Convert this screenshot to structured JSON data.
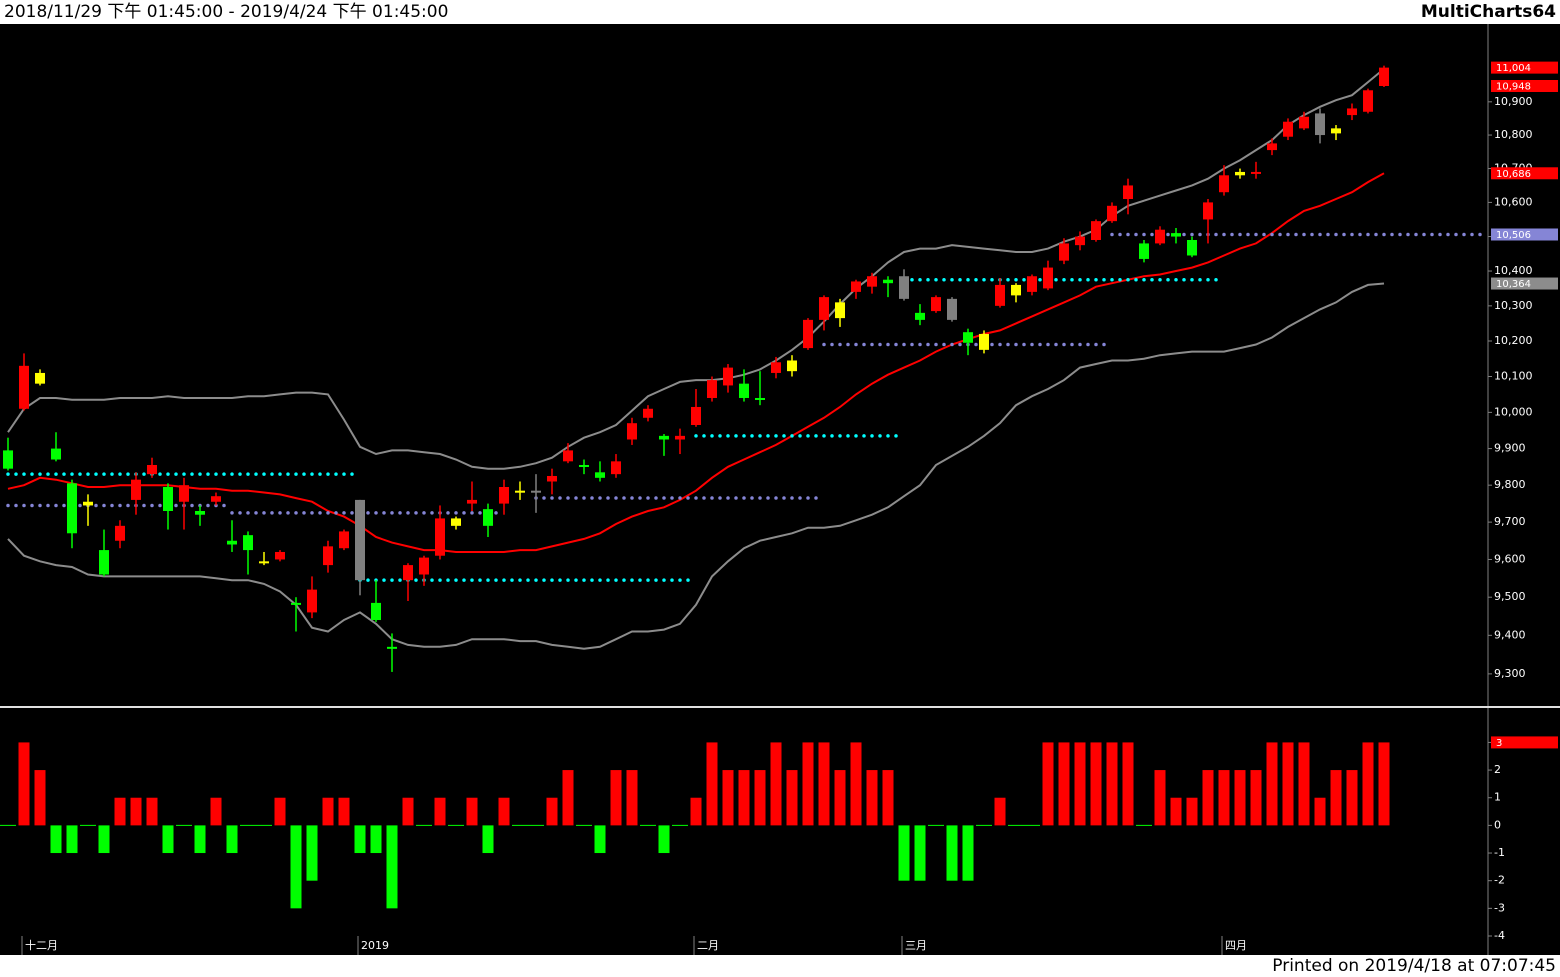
{
  "chart_data": {
    "type": "candlestick",
    "title": "2018/11/29 下午 01:45:00 - 2019/4/24 下午 01:45:00",
    "brand": "MultiCharts64",
    "footer": "Printed on 2019/4/18 at 07:07:45",
    "categories": [
      null,
      "十二月",
      null,
      null,
      null,
      null,
      null,
      null,
      null,
      null,
      null,
      null,
      null,
      null,
      null,
      null,
      null,
      null,
      null,
      null,
      null,
      null,
      "2019",
      null,
      null,
      null,
      null,
      null,
      null,
      null,
      null,
      null,
      null,
      null,
      null,
      null,
      null,
      null,
      null,
      null,
      null,
      null,
      null,
      "二月",
      null,
      null,
      null,
      null,
      null,
      null,
      null,
      null,
      null,
      null,
      null,
      null,
      "三月",
      null,
      null,
      null,
      null,
      null,
      null,
      null,
      null,
      null,
      null,
      null,
      null,
      null,
      null,
      null,
      null,
      null,
      null,
      null,
      "四月",
      null,
      null,
      null,
      null,
      null,
      null,
      null,
      null,
      null,
      null
    ],
    "open": [
      9895,
      10010,
      10080,
      9900,
      9805,
      9745,
      9625,
      9650,
      9760,
      9830,
      9795,
      9755,
      9730,
      9755,
      9650,
      9665,
      9590,
      9600,
      9485,
      9460,
      9585,
      9630,
      9760,
      9485,
      9370,
      9545,
      9560,
      9610,
      9690,
      9750,
      9735,
      9750,
      9780,
      9785,
      9810,
      9865,
      9855,
      9835,
      9830,
      9925,
      9985,
      9935,
      9925,
      9965,
      10040,
      10075,
      10080,
      10040,
      10110,
      10115,
      10180,
      10260,
      10265,
      10340,
      10355,
      10375,
      10385,
      10280,
      10285,
      10320,
      10225,
      10175,
      10300,
      10330,
      10340,
      10350,
      10430,
      10475,
      10490,
      10545,
      10610,
      10480,
      10480,
      10510,
      10490,
      10550,
      10630,
      10680,
      10685,
      10755,
      10795,
      10820,
      10865,
      10805,
      10860,
      10870,
      10948
    ],
    "high": [
      9930,
      10165,
      10120,
      9945,
      9815,
      9775,
      9680,
      9705,
      9835,
      9875,
      9805,
      9820,
      9745,
      9780,
      9705,
      9675,
      9620,
      9625,
      9500,
      9555,
      9650,
      9680,
      9760,
      9545,
      9405,
      9590,
      9610,
      9745,
      9715,
      9810,
      9750,
      9815,
      9810,
      9830,
      9845,
      9915,
      9870,
      9865,
      9885,
      9985,
      10020,
      9940,
      9955,
      10065,
      10100,
      10135,
      10120,
      10115,
      10155,
      10160,
      10265,
      10330,
      10320,
      10375,
      10395,
      10385,
      10405,
      10305,
      10330,
      10325,
      10235,
      10230,
      10380,
      10365,
      10390,
      10430,
      10495,
      10515,
      10550,
      10600,
      10670,
      10490,
      10530,
      10525,
      10500,
      10610,
      10710,
      10700,
      10720,
      10790,
      10850,
      10870,
      10880,
      10830,
      10895,
      10940,
      11010
    ],
    "low": [
      9840,
      10005,
      10075,
      9865,
      9630,
      9690,
      9555,
      9630,
      9720,
      9820,
      9680,
      9680,
      9690,
      9745,
      9620,
      9560,
      9585,
      9595,
      9410,
      9445,
      9565,
      9625,
      9505,
      9435,
      9305,
      9490,
      9530,
      9600,
      9680,
      9730,
      9660,
      9720,
      9760,
      9725,
      9775,
      9860,
      9830,
      9810,
      9820,
      9910,
      9975,
      9880,
      9885,
      9960,
      10030,
      10055,
      10030,
      10020,
      10095,
      10100,
      10175,
      10230,
      10240,
      10320,
      10335,
      10325,
      10315,
      10245,
      10280,
      10255,
      10160,
      10165,
      10295,
      10310,
      10330,
      10345,
      10420,
      10460,
      10485,
      10540,
      10565,
      10425,
      10475,
      10480,
      10440,
      10480,
      10620,
      10670,
      10670,
      10740,
      10785,
      10815,
      10775,
      10785,
      10845,
      10865,
      10945
    ],
    "close": [
      9845,
      10130,
      10110,
      9870,
      9670,
      9755,
      9560,
      9690,
      9815,
      9855,
      9730,
      9800,
      9720,
      9770,
      9640,
      9625,
      9595,
      9620,
      9480,
      9520,
      9635,
      9675,
      9545,
      9440,
      9365,
      9585,
      9605,
      9710,
      9710,
      9760,
      9690,
      9795,
      9785,
      9780,
      9825,
      9895,
      9850,
      9820,
      9865,
      9970,
      10010,
      9925,
      9935,
      10015,
      10090,
      10125,
      10040,
      10035,
      10140,
      10145,
      10260,
      10325,
      10310,
      10370,
      10385,
      10365,
      10320,
      10260,
      10325,
      10260,
      10195,
      10220,
      10360,
      10360,
      10385,
      10410,
      10480,
      10500,
      10545,
      10590,
      10650,
      10435,
      10520,
      10500,
      10445,
      10600,
      10680,
      10690,
      10690,
      10775,
      10840,
      10855,
      10800,
      10820,
      10880,
      10935,
      11004
    ],
    "candle_colors": [
      "#00ff00",
      "#ff0000",
      "#ffff00",
      "#00ff00",
      "#00ff00",
      "#ffff00",
      "#00ff00",
      "#ff0000",
      "#ff0000",
      "#ff0000",
      "#00ff00",
      "#ff0000",
      "#00ff00",
      "#ff0000",
      "#00ff00",
      "#00ff00",
      "#ffff00",
      "#ff0000",
      "#00ff00",
      "#ff0000",
      "#ff0000",
      "#ff0000",
      "#808080",
      "#00ff00",
      "#00ff00",
      "#ff0000",
      "#ff0000",
      "#ff0000",
      "#ffff00",
      "#ff0000",
      "#00ff00",
      "#ff0000",
      "#ffff00",
      "#808080",
      "#ff0000",
      "#ff0000",
      "#00ff00",
      "#00ff00",
      "#ff0000",
      "#ff0000",
      "#ff0000",
      "#00ff00",
      "#ff0000",
      "#ff0000",
      "#ff0000",
      "#ff0000",
      "#00ff00",
      "#00ff00",
      "#ff0000",
      "#ffff00",
      "#ff0000",
      "#ff0000",
      "#ffff00",
      "#ff0000",
      "#ff0000",
      "#00ff00",
      "#808080",
      "#00ff00",
      "#ff0000",
      "#808080",
      "#00ff00",
      "#ffff00",
      "#ff0000",
      "#ffff00",
      "#ff0000",
      "#ff0000",
      "#ff0000",
      "#ff0000",
      "#ff0000",
      "#ff0000",
      "#ff0000",
      "#00ff00",
      "#ff0000",
      "#00ff00",
      "#00ff00",
      "#ff0000",
      "#ff0000",
      "#ffff00",
      "#ff0000",
      "#ff0000",
      "#ff0000",
      "#ff0000",
      "#808080",
      "#ffff00",
      "#ff0000",
      "#ff0000",
      "#ff0000"
    ],
    "series": [
      {
        "color": "#8c8c8c",
        "style": "line",
        "values": [
          9945,
          10010,
          10040,
          10040,
          10035,
          10035,
          10035,
          10040,
          10040,
          10040,
          10045,
          10040,
          10040,
          10040,
          10040,
          10045,
          10045,
          10050,
          10055,
          10055,
          10050,
          9980,
          9905,
          9885,
          9895,
          9895,
          9890,
          9885,
          9870,
          9850,
          9845,
          9845,
          9850,
          9860,
          9875,
          9905,
          9930,
          9945,
          9965,
          10005,
          10045,
          10065,
          10085,
          10090,
          10090,
          10095,
          10105,
          10120,
          10145,
          10175,
          10210,
          10255,
          10305,
          10350,
          10385,
          10425,
          10455,
          10465,
          10465,
          10475,
          10470,
          10465,
          10460,
          10455,
          10455,
          10465,
          10485,
          10500,
          10520,
          10560,
          10590,
          10605,
          10620,
          10635,
          10650,
          10670,
          10700,
          10725,
          10755,
          10785,
          10830,
          10860,
          10885,
          10905,
          10920,
          10960,
          11000
        ]
      },
      {
        "color": "#ff0000",
        "style": "line",
        "values": [
          9790,
          9800,
          9820,
          9815,
          9805,
          9795,
          9795,
          9800,
          9800,
          9800,
          9800,
          9795,
          9790,
          9790,
          9785,
          9785,
          9780,
          9775,
          9765,
          9755,
          9730,
          9715,
          9690,
          9660,
          9645,
          9635,
          9625,
          9625,
          9620,
          9620,
          9620,
          9620,
          9625,
          9625,
          9635,
          9645,
          9655,
          9670,
          9695,
          9715,
          9730,
          9740,
          9760,
          9785,
          9820,
          9850,
          9870,
          9890,
          9910,
          9935,
          9960,
          9985,
          10015,
          10050,
          10080,
          10105,
          10125,
          10145,
          10170,
          10190,
          10205,
          10220,
          10230,
          10250,
          10270,
          10290,
          10310,
          10330,
          10355,
          10365,
          10375,
          10385,
          10390,
          10400,
          10410,
          10425,
          10445,
          10465,
          10480,
          10510,
          10545,
          10575,
          10590,
          10610,
          10630,
          10660,
          10686
        ]
      },
      {
        "color": "#8c8c8c",
        "style": "line",
        "values": [
          9655,
          9610,
          9595,
          9585,
          9580,
          9560,
          9555,
          9555,
          9555,
          9555,
          9555,
          9555,
          9555,
          9550,
          9545,
          9545,
          9535,
          9515,
          9480,
          9420,
          9410,
          9440,
          9460,
          9430,
          9390,
          9375,
          9370,
          9370,
          9375,
          9390,
          9390,
          9390,
          9385,
          9385,
          9375,
          9370,
          9365,
          9370,
          9390,
          9410,
          9410,
          9415,
          9430,
          9480,
          9555,
          9595,
          9630,
          9650,
          9660,
          9670,
          9685,
          9685,
          9690,
          9705,
          9720,
          9740,
          9770,
          9800,
          9855,
          9880,
          9905,
          9935,
          9970,
          10020,
          10045,
          10065,
          10090,
          10125,
          10135,
          10145,
          10145,
          10150,
          10160,
          10165,
          10170,
          10170,
          10170,
          10180,
          10190,
          10210,
          10240,
          10265,
          10290,
          10310,
          10340,
          10360,
          10364
        ]
      },
      {
        "color": "#00ffff",
        "style": "dots",
        "values": [
          9830,
          9830,
          9830,
          9830,
          9830,
          9830,
          9830,
          9830,
          9830,
          9830,
          9830,
          9830,
          9830,
          9830,
          9830,
          9830,
          9830,
          9830,
          9830,
          9830,
          9830,
          9830,
          9545,
          9545,
          9545,
          9545,
          9545,
          9545,
          9545,
          9545,
          9545,
          9545,
          9545,
          9545,
          9545,
          9545,
          9545,
          9545,
          9545,
          9545,
          9545,
          9545,
          9545,
          9935,
          9935,
          9935,
          9935,
          9935,
          9935,
          9935,
          9935,
          9935,
          9935,
          9935,
          9935,
          9935,
          10375,
          10375,
          10375,
          10375,
          10375,
          10375,
          10375,
          10375,
          10375,
          10375,
          10375,
          10375,
          10375,
          10375,
          10375,
          10375,
          10375,
          10375,
          10375,
          10375,
          null,
          null,
          null,
          null,
          null,
          null,
          null,
          null,
          null,
          null,
          null
        ]
      },
      {
        "color": "#8585d6",
        "style": "dots",
        "values": [
          9745,
          9745,
          9745,
          9745,
          9745,
          9745,
          9745,
          9745,
          9745,
          9745,
          9745,
          9745,
          9745,
          9745,
          9725,
          9725,
          9725,
          9725,
          9725,
          9725,
          9725,
          9725,
          9725,
          9725,
          9725,
          9725,
          9725,
          9725,
          9725,
          9725,
          9725,
          null,
          null,
          9765,
          9765,
          9765,
          9765,
          9765,
          9765,
          9765,
          9765,
          9765,
          9765,
          9765,
          9765,
          9765,
          9765,
          9765,
          9765,
          9765,
          9765,
          10190,
          10190,
          10190,
          10190,
          10190,
          10190,
          10190,
          10190,
          10190,
          10190,
          10190,
          10190,
          10190,
          10190,
          10190,
          10190,
          10190,
          10190,
          10506,
          10506,
          10506,
          10506,
          10506,
          10506,
          10506,
          10506,
          10506,
          10506,
          10506,
          10506,
          10506,
          10506,
          10506,
          10506,
          10506,
          10506
        ]
      }
    ],
    "log_scale": true,
    "ylim": [
      9220,
      11138
    ],
    "yticks": [
      {
        "value": 9300,
        "label": "9,300"
      },
      {
        "value": 9400,
        "label": "9,400"
      },
      {
        "value": 9500,
        "label": "9,500"
      },
      {
        "value": 9600,
        "label": "9,600"
      },
      {
        "value": 9700,
        "label": "9,700"
      },
      {
        "value": 9800,
        "label": "9,800"
      },
      {
        "value": 9900,
        "label": "9,900"
      },
      {
        "value": 10000,
        "label": "10,000"
      },
      {
        "value": 10100,
        "label": "10,100"
      },
      {
        "value": 10200,
        "label": "10,200"
      },
      {
        "value": 10300,
        "label": "10,300"
      },
      {
        "value": 10400,
        "label": "10,400"
      },
      {
        "value": 10500,
        "label": "10,500"
      },
      {
        "value": 10600,
        "label": "10,600"
      },
      {
        "value": 10700,
        "label": "10,700"
      },
      {
        "value": 10800,
        "label": "10,800"
      },
      {
        "value": 10900,
        "label": "10,900"
      }
    ],
    "price_tags": [
      {
        "value": 11004,
        "label": "11,004",
        "color": "#ff0000"
      },
      {
        "value": 10948,
        "label": "10,948",
        "color": "#ff0000"
      },
      {
        "value": 10686,
        "label": "10,686",
        "color": "#ff0000"
      },
      {
        "value": 10506,
        "label": "10,506",
        "color": "#8585d6"
      },
      {
        "value": 10364,
        "label": "10,364",
        "color": "#8c8c8c"
      }
    ],
    "indicator": {
      "type": "bar",
      "values": [
        0,
        3,
        2,
        -1,
        -1,
        0,
        -1,
        1,
        1,
        1,
        -1,
        0,
        -1,
        1,
        -1,
        0,
        0,
        1,
        -3,
        -2,
        1,
        1,
        -1,
        -1,
        -3,
        1,
        0,
        1,
        0,
        1,
        -1,
        1,
        0,
        0,
        1,
        2,
        0,
        -1,
        2,
        2,
        0,
        -1,
        0,
        1,
        3,
        2,
        2,
        2,
        3,
        2,
        3,
        3,
        2,
        3,
        2,
        2,
        -2,
        -2,
        0,
        -2,
        -2,
        0,
        1,
        0,
        0,
        3,
        3,
        3,
        3,
        3,
        3,
        0,
        2,
        1,
        1,
        2,
        2,
        2,
        2,
        3,
        3,
        3,
        1,
        2,
        2,
        3,
        3
      ],
      "positive_color": "#ff0000",
      "negative_color": "#00ff00",
      "ylim": [
        -4,
        4.1
      ],
      "yticks": [
        3,
        2,
        1,
        0,
        -1,
        -2,
        -3,
        -4
      ],
      "tag": 3
    }
  }
}
